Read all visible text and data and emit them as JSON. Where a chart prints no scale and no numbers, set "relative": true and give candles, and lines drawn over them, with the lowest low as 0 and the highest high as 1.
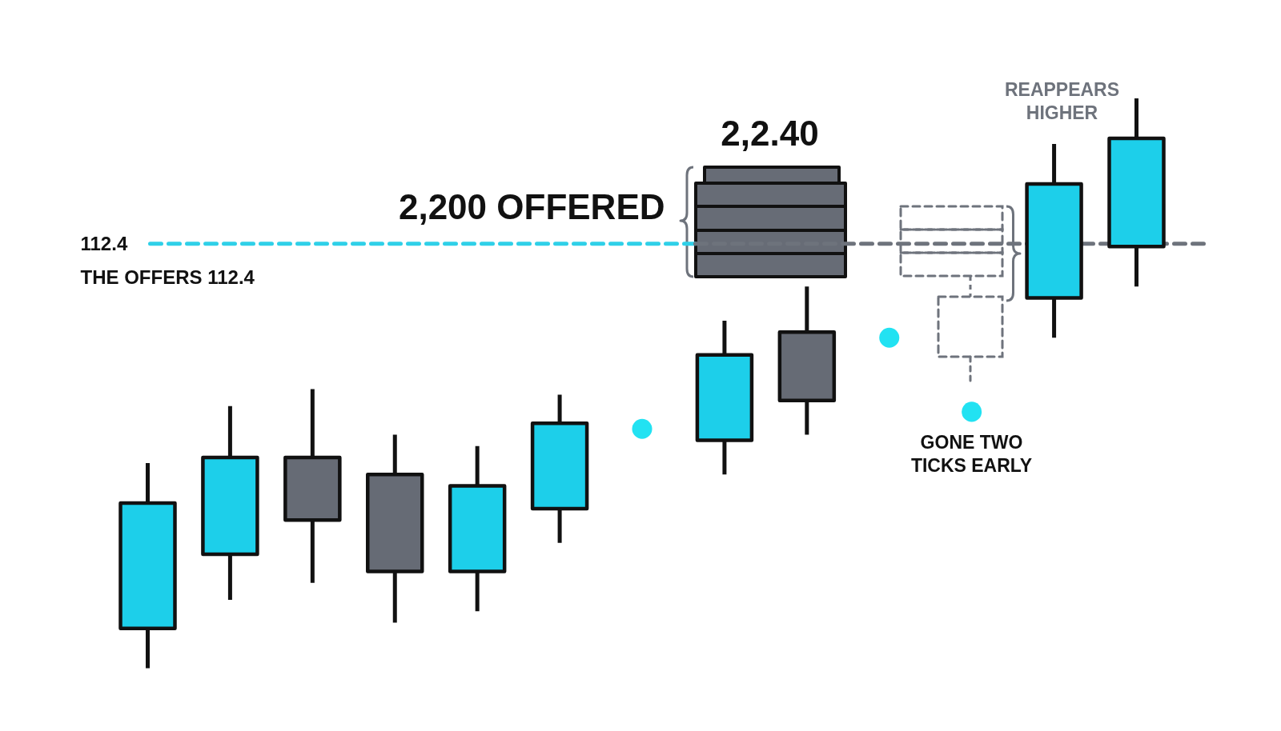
{
  "chart_data": {
    "type": "candlestick",
    "relative": true,
    "categories": [
      null,
      null,
      null,
      null,
      null,
      null,
      null,
      null,
      null,
      null,
      null,
      null,
      null
    ],
    "ohlc": [
      [
        0.07,
        0.36,
        0,
        0.29
      ],
      [
        0.2,
        0.46,
        0.12,
        0.37
      ],
      [
        0.37,
        0.49,
        0.15,
        0.26
      ],
      [
        0.34,
        0.41,
        0.08,
        0.17
      ],
      [
        0.17,
        0.39,
        0.1,
        0.32
      ],
      [
        0.28,
        0.48,
        0.22,
        0.43
      ],
      null,
      [
        0.4,
        0.61,
        0.34,
        0.55
      ],
      [
        0.59,
        0.67,
        0.41,
        0.47
      ],
      null,
      null,
      [
        0.65,
        0.92,
        0.58,
        0.85
      ],
      [
        0.74,
        1,
        0.67,
        0.93
      ]
    ],
    "colors": [
      "#1dcfea",
      "#1dcfea",
      "#666b75",
      "#666b75",
      "#1dcfea",
      "#1dcfea",
      null,
      "#1dcfea",
      "#666b75",
      null,
      null,
      "#1dcfea",
      "#1dcfea"
    ],
    "series": [
      {
        "type": "scatter",
        "color": "#22e2f2",
        "values": [
          null,
          null,
          null,
          null,
          null,
          null,
          0.42,
          null,
          null,
          0.58,
          0.45,
          null,
          null
        ]
      }
    ],
    "marker": "circle",
    "ref_lines": [
      {
        "axis": "y",
        "value": 0.745,
        "color": "#2fd0e8",
        "line_style": "dashed"
      },
      {
        "axis": "y",
        "value": 0.745,
        "color": "#6e737c",
        "line_style": "dashed"
      }
    ],
    "annotations": [
      "112.4",
      "THE OFFERS 112.4",
      "2,200 OFFERED",
      "2,2.40",
      "REAPPEARS HIGHER",
      "GONE TWO TICKS EARLY"
    ]
  }
}
